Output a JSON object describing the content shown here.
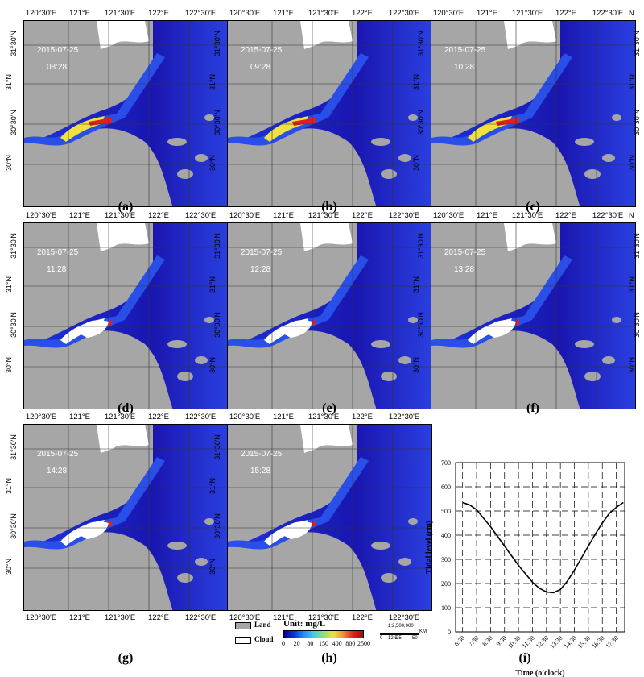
{
  "panels": [
    {
      "letter": "(a)",
      "date": "2015-07-25",
      "time": "08:28"
    },
    {
      "letter": "(b)",
      "date": "2015-07-25",
      "time": "09:28"
    },
    {
      "letter": "(c)",
      "date": "2015-07-25",
      "time": "10:28"
    },
    {
      "letter": "(d)",
      "date": "2015-07-25",
      "time": "11:28"
    },
    {
      "letter": "(e)",
      "date": "2015-07-25",
      "time": "12:28"
    },
    {
      "letter": "(f)",
      "date": "2015-07-25",
      "time": "13:28"
    },
    {
      "letter": "(g)",
      "date": "2015-07-25",
      "time": "14:28"
    },
    {
      "letter": "(h)",
      "date": "2015-07-25",
      "time": "15:28"
    }
  ],
  "lon_ticks": [
    "120°30'E",
    "121°E",
    "121°30'E",
    "122°E",
    "122°30'E"
  ],
  "lat_ticks": [
    "31°30'N",
    "31°N",
    "30°30'N",
    "30°N"
  ],
  "north_label": "N",
  "legend": {
    "land_label": "Land",
    "cloud_label": "Cloud",
    "unit_label": "Unit:  mg/L",
    "colorbar_ticks": [
      "0",
      "20",
      "80",
      "150",
      "400",
      "800",
      "2500"
    ],
    "colors": {
      "land": "#a6a6a6",
      "cloud": "#ffffff",
      "water_low": "#1a0fb4",
      "water_mid": "#2a6cf0",
      "water_high": "#e0282e"
    }
  },
  "scalebar": {
    "ratio": "1:2,500,000",
    "unit": "KM",
    "ticks": [
      "0",
      "12.5",
      "25",
      "50"
    ]
  },
  "chart_data": {
    "type": "line",
    "title": "",
    "panel_label": "(i)",
    "xlabel": "Time (o'clock)",
    "ylabel": "Tidal  level (cm)",
    "categories": [
      "6:30",
      "7:30",
      "8:30",
      "9:30",
      "10:30",
      "11:30",
      "12:30",
      "13:30",
      "14:30",
      "15:30",
      "16:30",
      "17:30"
    ],
    "x": [
      6.5,
      7.0,
      7.5,
      8.0,
      8.5,
      9.0,
      9.5,
      10.0,
      10.5,
      11.0,
      11.5,
      12.0,
      12.5,
      13.0,
      13.5,
      14.0,
      14.5,
      15.0,
      15.5,
      16.0,
      16.5,
      17.0,
      17.5,
      18.0
    ],
    "values": [
      535,
      525,
      505,
      470,
      435,
      395,
      355,
      315,
      275,
      240,
      205,
      180,
      165,
      162,
      175,
      210,
      255,
      305,
      355,
      405,
      450,
      490,
      515,
      535
    ],
    "ylim": [
      0,
      700
    ],
    "yticks": [
      0,
      100,
      200,
      300,
      400,
      500,
      600,
      700
    ],
    "grid": true
  }
}
